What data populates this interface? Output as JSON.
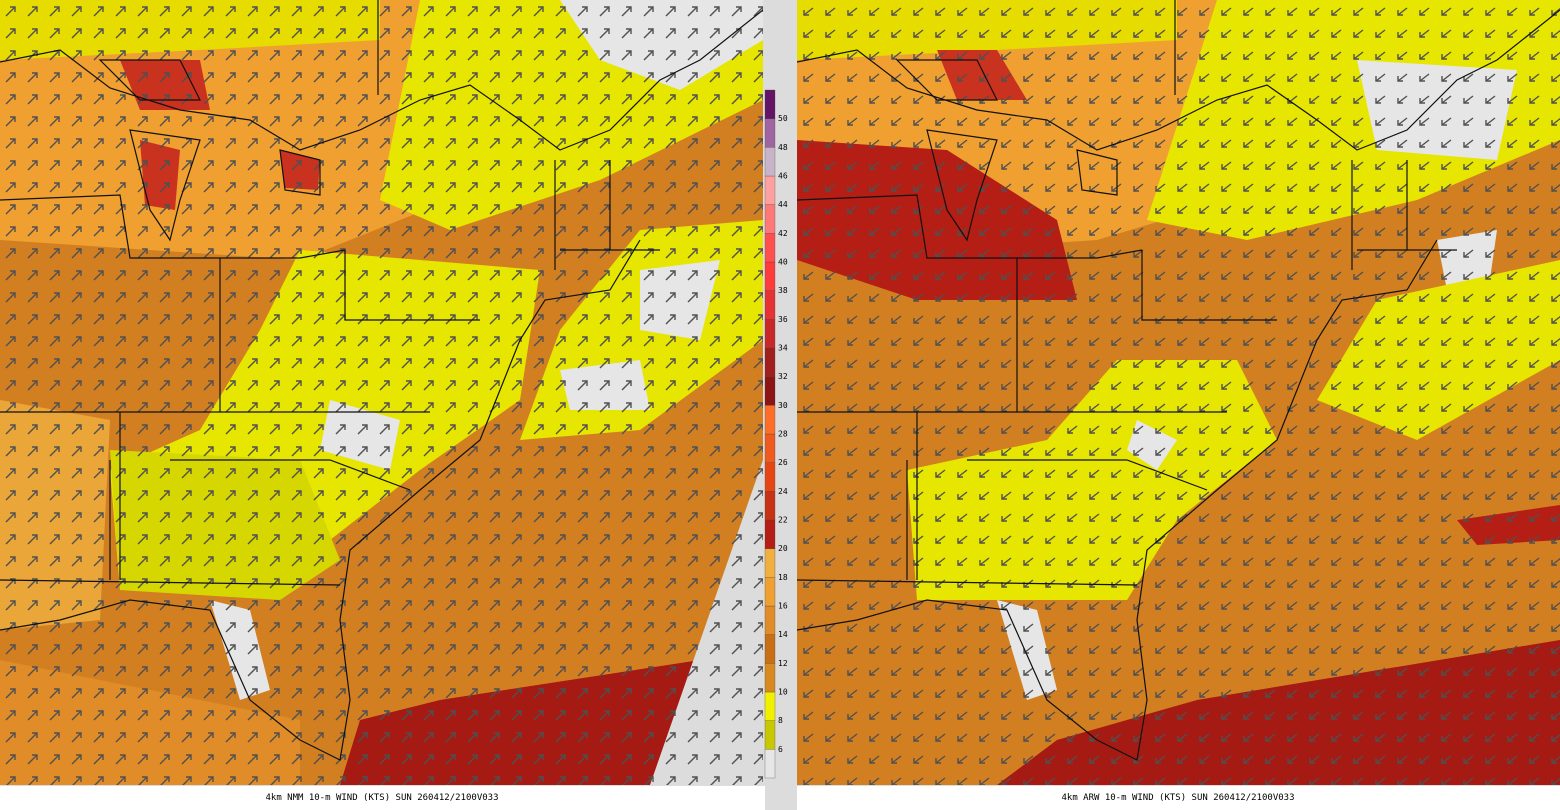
{
  "panels": [
    {
      "caption": "4km NMM 10-m WIND (KTS) SUN 260412/2100V033"
    },
    {
      "caption": "4km ARW 10-m WIND (KTS) SUN 260412/2100V033"
    }
  ],
  "colorbar": {
    "labels": [
      6,
      8,
      10,
      12,
      14,
      16,
      18,
      20,
      22,
      24,
      26,
      28,
      30,
      32,
      34,
      36,
      38,
      40,
      42,
      44,
      46,
      48,
      50
    ],
    "colors": [
      "#e6e6e6",
      "#c8c800",
      "#f0f000",
      "#d88a20",
      "#c86e14",
      "#e08c28",
      "#f0a030",
      "#f0b040",
      "#b41e14",
      "#c83214",
      "#e64614",
      "#f05a1e",
      "#ff6e28",
      "#8c1414",
      "#a01e1e",
      "#c82828",
      "#e63232",
      "#ff3c3c",
      "#ff5050",
      "#ff7878",
      "#ffa0a0",
      "#c8b4c8",
      "#a064a0",
      "#641464"
    ]
  }
}
